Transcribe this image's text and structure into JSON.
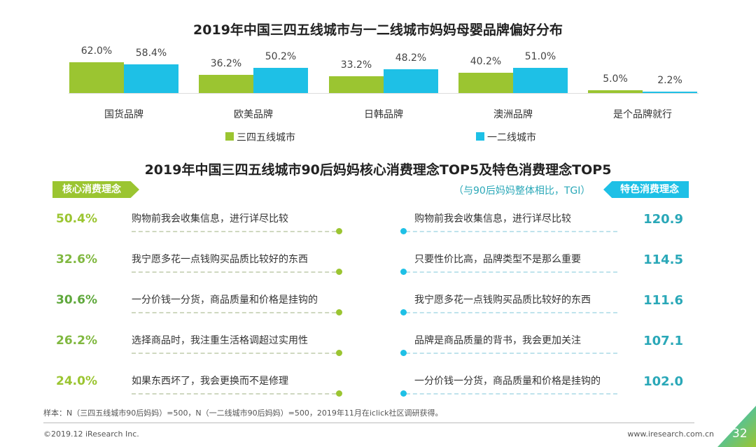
{
  "chart_data": [
    {
      "type": "bar",
      "title": "2019年中国三四五线城市与一二线城市妈妈母婴品牌偏好分布",
      "categories": [
        "国货品牌",
        "欧美品牌",
        "日韩品牌",
        "澳洲品牌",
        "是个品牌就行"
      ],
      "series": [
        {
          "name": "三四五线城市",
          "values": [
            62.0,
            36.2,
            33.2,
            40.2,
            5.0
          ],
          "color": "#9bc531"
        },
        {
          "name": "一二线城市",
          "values": [
            58.4,
            50.2,
            48.2,
            51.0,
            2.2
          ],
          "color": "#1ec0e6"
        }
      ],
      "unit": "%",
      "legend": "bottom"
    },
    {
      "type": "table",
      "title": "2019年中国三四五线城市90后妈妈核心消费理念TOP5及特色消费理念TOP5",
      "left": {
        "tag": "核心消费理念",
        "items": [
          {
            "value": "50.4%",
            "text": "购物前我会收集信息，进行详尽比较",
            "color": "#9bc531"
          },
          {
            "value": "32.6%",
            "text": "我宁愿多花一点钱购买品质比较好的东西",
            "color": "#80b840"
          },
          {
            "value": "30.6%",
            "text": "一分价钱一分货，商品质量和价格是挂钩的",
            "color": "#5fa83c"
          },
          {
            "value": "26.2%",
            "text": "选择商品时，我注重生活格调超过实用性",
            "color": "#80b840"
          },
          {
            "value": "24.0%",
            "text": "如果东西坏了，我会更换而不是修理",
            "color": "#9bc531"
          }
        ]
      },
      "right": {
        "tag": "特色消费理念",
        "note": "（与90后妈妈整体相比，TGI）",
        "items": [
          {
            "value": "120.9",
            "text": "购物前我会收集信息，进行详尽比较"
          },
          {
            "value": "114.5",
            "text": "只要性价比高，品牌类型不是那么重要"
          },
          {
            "value": "111.6",
            "text": "我宁愿多花一点钱购买品质比较好的东西"
          },
          {
            "value": "107.1",
            "text": "品牌是商品质量的背书，我会更加关注"
          },
          {
            "value": "102.0",
            "text": "一分价钱一分货，商品质量和价格是挂钩的"
          }
        ]
      }
    }
  ],
  "footer": {
    "note": "样本：N（三四五线城市90后妈妈）=500，N（一二线城市90后妈妈）=500，2019年11月在iclick社区调研获得。",
    "copyright": "©2019.12 iResearch Inc.",
    "website": "www.iresearch.com.cn",
    "page": "32"
  }
}
